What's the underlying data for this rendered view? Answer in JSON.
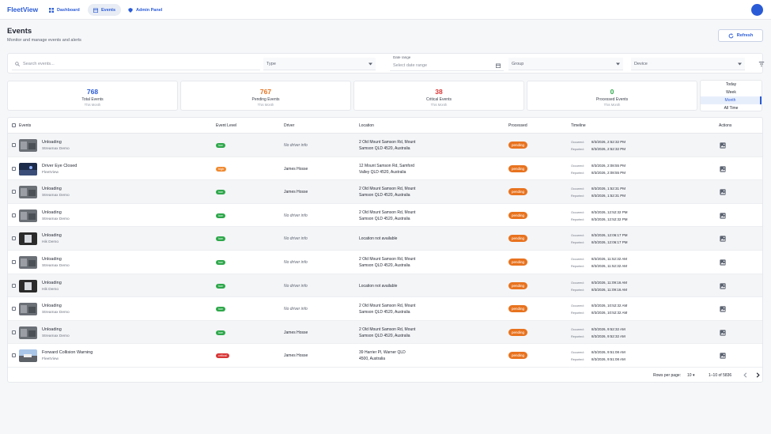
{
  "nav": {
    "brand": "FleetView",
    "dashboard": "Dashboard",
    "events": "Events",
    "admin": "Admin Panel"
  },
  "header": {
    "title": "Events",
    "subtitle": "Monitor and manage events and alerts",
    "refresh": "Refresh"
  },
  "filters": {
    "search_placeholder": "Search events...",
    "type": "Type",
    "date_label": "Date range",
    "date_placeholder": "Select date range",
    "group": "Group",
    "device": "Device"
  },
  "stats": [
    {
      "value": "768",
      "label": "Total Events",
      "sub": "This Month",
      "color": "#2a5bd7"
    },
    {
      "value": "767",
      "label": "Pending Events",
      "sub": "This Month",
      "color": "#e8731f"
    },
    {
      "value": "38",
      "label": "Critical Events",
      "sub": "This Month",
      "color": "#d93636"
    },
    {
      "value": "0",
      "label": "Processed Events",
      "sub": "This Month",
      "color": "#2ea84b"
    }
  ],
  "periods": [
    "Today",
    "Week",
    "Month",
    "All Time"
  ],
  "selected_period": "Month",
  "columns": {
    "events": "Events",
    "level": "Event Level",
    "driver": "Driver",
    "location": "Location",
    "processed": "Processed",
    "timeline": "Timeline",
    "actions": "Actions"
  },
  "timeline_labels": {
    "occurred": "Occurred:",
    "reported": "Reported:"
  },
  "level_colors": {
    "low": "#2ea84b",
    "high": "#f0892f",
    "critical": "#d93636"
  },
  "rows": [
    {
      "title": "Unloading",
      "source": "Streamax Demo",
      "level": "low",
      "driver": "No driver info",
      "no_driver": true,
      "loc1": "2 Old Mount Samson Rd, Mount",
      "loc2": "Samson QLD 4520, Australia",
      "processed": "pending",
      "occurred": "8/3/2026, 2:52:32 PM",
      "reported": "8/3/2026, 2:52:32 PM",
      "thumb": "gray"
    },
    {
      "title": "Driver Eye Closed",
      "source": "FleetView",
      "level": "high",
      "driver": "James Hosse",
      "no_driver": false,
      "loc1": "12 Mount Samson Rd, Samford",
      "loc2": "Valley QLD 4520, Australia",
      "processed": "pending",
      "occurred": "8/3/2026, 2:08:55 PM",
      "reported": "8/3/2026, 2:08:55 PM",
      "thumb": "night"
    },
    {
      "title": "Unloading",
      "source": "Streamax Demo",
      "level": "low",
      "driver": "James Hosse",
      "no_driver": false,
      "loc1": "2 Old Mount Samson Rd, Mount",
      "loc2": "Samson QLD 4520, Australia",
      "processed": "pending",
      "occurred": "8/3/2026, 1:52:31 PM",
      "reported": "8/3/2026, 1:52:31 PM",
      "thumb": "gray"
    },
    {
      "title": "Unloading",
      "source": "Streamax Demo",
      "level": "low",
      "driver": "No driver info",
      "no_driver": true,
      "loc1": "2 Old Mount Samson Rd, Mount",
      "loc2": "Samson QLD 4520, Australia",
      "processed": "pending",
      "occurred": "8/3/2026, 12:52:32 PM",
      "reported": "8/3/2026, 12:52:32 PM",
      "thumb": "gray"
    },
    {
      "title": "Unloading",
      "source": "Hik Demo",
      "level": "low",
      "driver": "No driver info",
      "no_driver": true,
      "loc1": "Location not available",
      "loc2": "",
      "processed": "pending",
      "occurred": "8/3/2026, 12:06:17 PM",
      "reported": "8/3/2026, 12:06:17 PM",
      "thumb": "dark"
    },
    {
      "title": "Unloading",
      "source": "Streamax Demo",
      "level": "low",
      "driver": "No driver info",
      "no_driver": true,
      "loc1": "2 Old Mount Samson Rd, Mount",
      "loc2": "Samson QLD 4520, Australia",
      "processed": "pending",
      "occurred": "8/3/2026, 11:52:32 AM",
      "reported": "8/3/2026, 11:52:32 AM",
      "thumb": "gray"
    },
    {
      "title": "Unloading",
      "source": "Hik Demo",
      "level": "low",
      "driver": "No driver info",
      "no_driver": true,
      "loc1": "Location not available",
      "loc2": "",
      "processed": "pending",
      "occurred": "8/3/2026, 11:09:16 AM",
      "reported": "8/3/2026, 11:09:16 AM",
      "thumb": "dark"
    },
    {
      "title": "Unloading",
      "source": "Streamax Demo",
      "level": "low",
      "driver": "No driver info",
      "no_driver": true,
      "loc1": "2 Old Mount Samson Rd, Mount",
      "loc2": "Samson QLD 4520, Australia",
      "processed": "pending",
      "occurred": "8/3/2026, 10:52:32 AM",
      "reported": "8/3/2026, 10:52:32 AM",
      "thumb": "gray"
    },
    {
      "title": "Unloading",
      "source": "Streamax Demo",
      "level": "low",
      "driver": "James Hosse",
      "no_driver": false,
      "loc1": "2 Old Mount Samson Rd, Mount",
      "loc2": "Samson QLD 4520, Australia",
      "processed": "pending",
      "occurred": "8/3/2026, 9:52:32 AM",
      "reported": "8/3/2026, 9:52:32 AM",
      "thumb": "gray"
    },
    {
      "title": "Forward Collision Warning",
      "source": "FleetView",
      "level": "critical",
      "driver": "James Hosse",
      "no_driver": false,
      "loc1": "39 Harrier Pl, Warner QLD",
      "loc2": "4500, Australia",
      "processed": "pending",
      "occurred": "8/3/2026, 9:51:08 AM",
      "reported": "8/3/2026, 9:51:08 AM",
      "thumb": "road"
    }
  ],
  "footer": {
    "rows_per_page_label": "Rows per page:",
    "rows_per_page": "10",
    "range": "1–10 of 5836"
  }
}
